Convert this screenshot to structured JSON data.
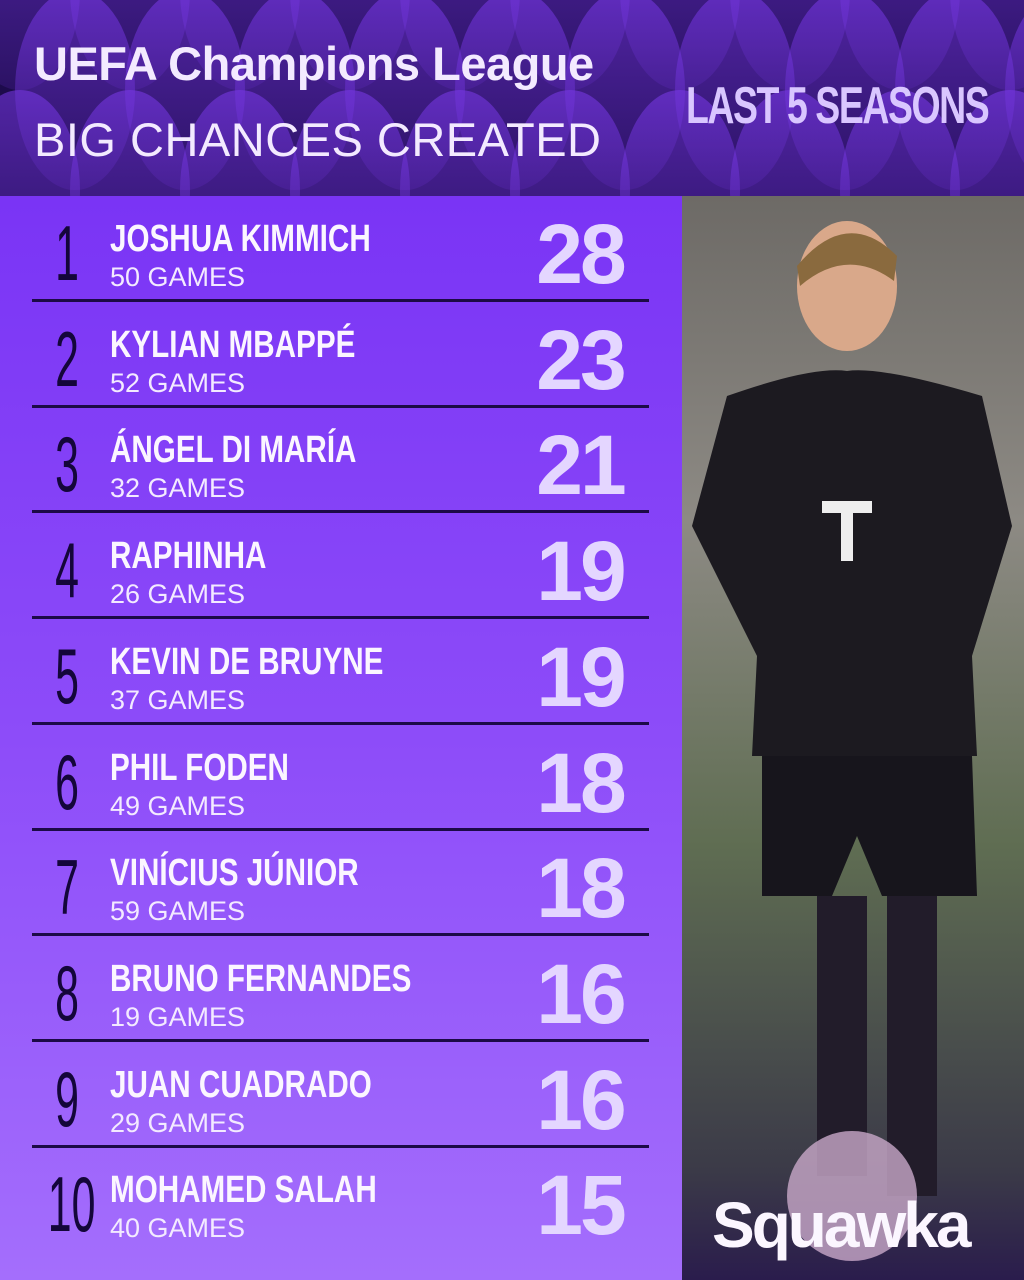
{
  "header": {
    "title": "UEFA Champions League",
    "subtitle": "BIG CHANCES CREATED",
    "period": "LAST 5 SEASONS"
  },
  "brand": {
    "logo": "Squawka"
  },
  "colors": {
    "header_bg": "#1d0b4c",
    "table_top": "#7a34f5",
    "table_bottom": "#a46efc",
    "value_text": "#e4d6ff",
    "rank_text": "#14063a"
  },
  "chart_data": {
    "type": "table",
    "title": "BIG CHANCES CREATED",
    "columns": [
      "rank",
      "player",
      "games",
      "big_chances_created"
    ],
    "rows": [
      {
        "rank": "1",
        "player": "JOSHUA KIMMICH",
        "games": "50 GAMES",
        "value": "28"
      },
      {
        "rank": "2",
        "player": "KYLIAN MBAPPÉ",
        "games": "52 GAMES",
        "value": "23"
      },
      {
        "rank": "3",
        "player": "ÁNGEL DI MARÍA",
        "games": "32 GAMES",
        "value": "21"
      },
      {
        "rank": "4",
        "player": "RAPHINHA",
        "games": "26 GAMES",
        "value": "19"
      },
      {
        "rank": "5",
        "player": "KEVIN DE BRUYNE",
        "games": "37 GAMES",
        "value": "19"
      },
      {
        "rank": "6",
        "player": "PHIL FODEN",
        "games": "49 GAMES",
        "value": "18"
      },
      {
        "rank": "7",
        "player": "VINÍCIUS JÚNIOR",
        "games": "59 GAMES",
        "value": "18"
      },
      {
        "rank": "8",
        "player": "BRUNO FERNANDES",
        "games": "19 GAMES",
        "value": "16"
      },
      {
        "rank": "9",
        "player": "JUAN CUADRADO",
        "games": "29 GAMES",
        "value": "16"
      },
      {
        "rank": "10",
        "player": "MOHAMED SALAH",
        "games": "40 GAMES",
        "value": "15"
      }
    ]
  }
}
